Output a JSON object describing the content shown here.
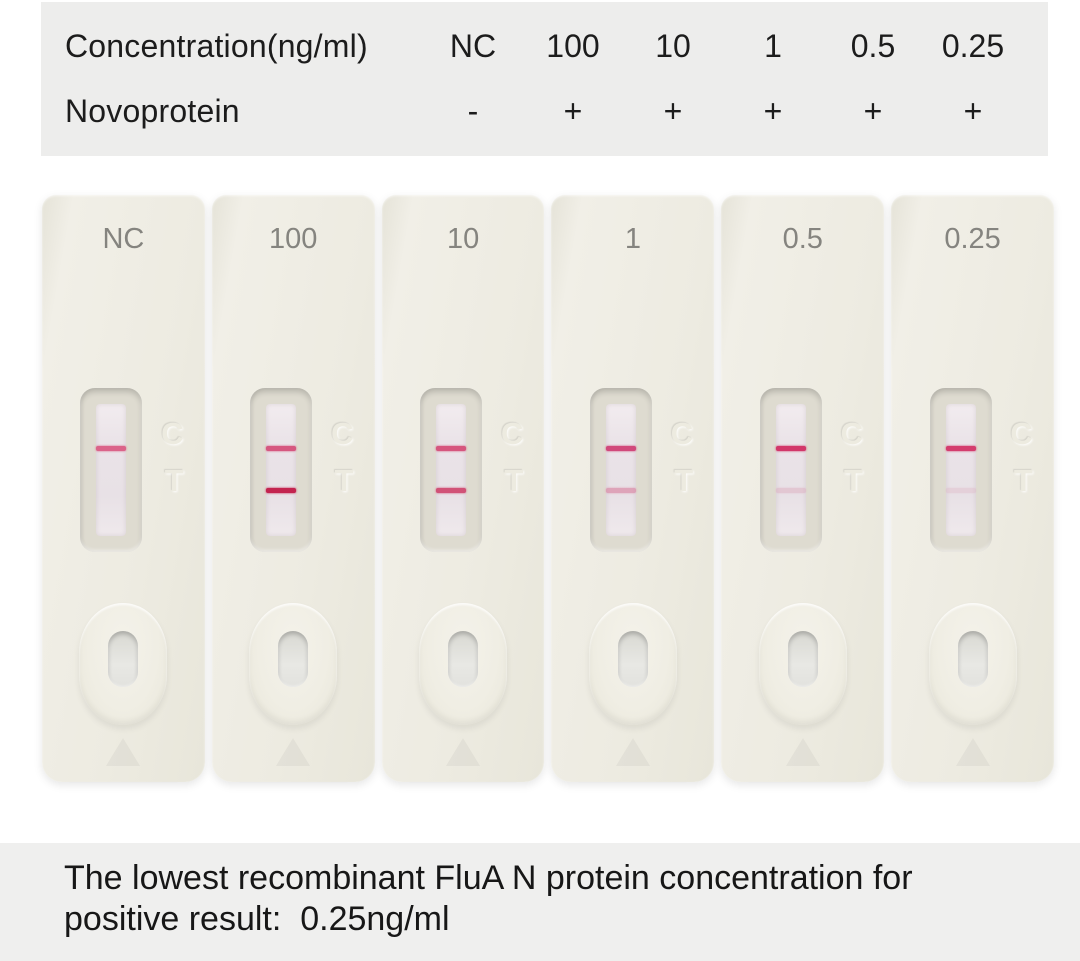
{
  "table": {
    "row1": {
      "label": "Concentration(ng/ml)",
      "values": [
        "NC",
        "100",
        "10",
        "1",
        "0.5",
        "0.25"
      ]
    },
    "row2": {
      "label": "Novoprotein",
      "values": [
        "-",
        "+",
        "+",
        "+",
        "+",
        "+"
      ]
    }
  },
  "window_letters": {
    "control": "C",
    "test": "T"
  },
  "cassettes": [
    {
      "label": "NC",
      "control_line": {
        "visible": true,
        "color": "#db5d85",
        "opacity": 0.95
      },
      "test_line": {
        "visible": false,
        "color": "#db5d85",
        "opacity": 0
      }
    },
    {
      "label": "100",
      "control_line": {
        "visible": true,
        "color": "#d5507b",
        "opacity": 0.95
      },
      "test_line": {
        "visible": true,
        "color": "#c3244f",
        "opacity": 1
      }
    },
    {
      "label": "10",
      "control_line": {
        "visible": true,
        "color": "#d54f79",
        "opacity": 0.95
      },
      "test_line": {
        "visible": true,
        "color": "#ce3f68",
        "opacity": 0.88
      }
    },
    {
      "label": "1",
      "control_line": {
        "visible": true,
        "color": "#d04176",
        "opacity": 0.95
      },
      "test_line": {
        "visible": true,
        "color": "#d97c9c",
        "opacity": 0.6
      }
    },
    {
      "label": "0.5",
      "control_line": {
        "visible": true,
        "color": "#d2376a",
        "opacity": 1
      },
      "test_line": {
        "visible": true,
        "color": "#dca8bb",
        "opacity": 0.45
      }
    },
    {
      "label": "0.25",
      "control_line": {
        "visible": true,
        "color": "#d43d6e",
        "opacity": 1
      },
      "test_line": {
        "visible": true,
        "color": "#dcaabc",
        "opacity": 0.3
      }
    }
  ],
  "caption": {
    "line1": "The lowest recombinant FluA N protein concentration for",
    "line2": "positive result:  0.25ng/ml"
  },
  "colors": {
    "page_bg": "#ffffff",
    "table_band_bg": "#ededec",
    "caption_band_bg": "#efefee",
    "cassette_body": "#edebe1",
    "strip_bg": "#e9e2e7",
    "cassette_label_gray": "#85847f",
    "text_dark": "#1c1c1c",
    "control_line_pink": "#d5507b",
    "test_line_strong": "#c3244f"
  }
}
